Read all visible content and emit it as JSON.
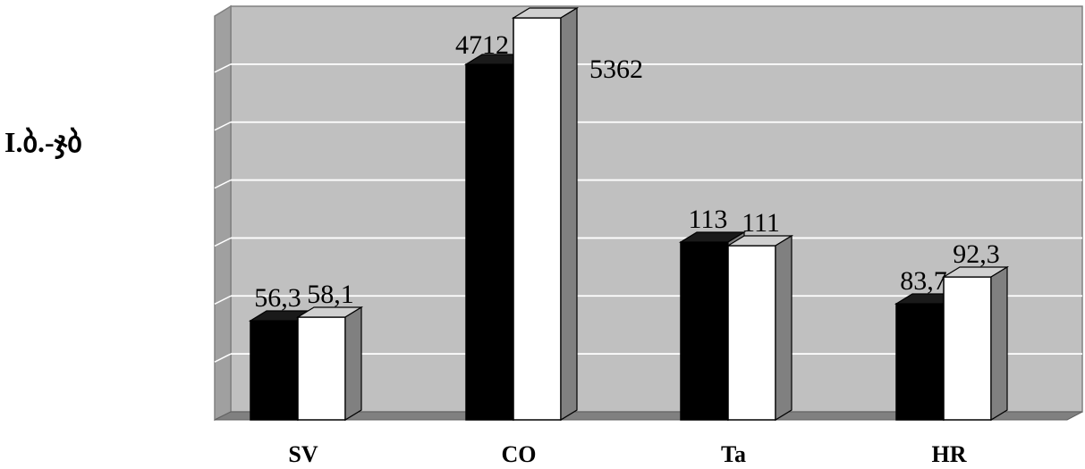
{
  "chart_data": {
    "type": "bar",
    "title": "I.ბ.-ჯბ",
    "categories": [
      "SV",
      "CO",
      "Ta",
      "HR"
    ],
    "series": [
      {
        "values": [
          56.3,
          4712,
          113,
          83.7
        ],
        "labels": [
          "56,3",
          "4712",
          "113",
          "83,7"
        ],
        "color": "#000000"
      },
      {
        "values": [
          58.1,
          5362,
          111,
          92.3
        ],
        "labels": [
          "58,1",
          "5362",
          "111",
          "92,3"
        ],
        "color": "#ffffff"
      }
    ],
    "grid": true,
    "gridlines": 7,
    "wall_color": "#c0c0c0",
    "side_wall_color": "#a0a0a0",
    "floor_color": "#808080",
    "bar_side_color": "#808080",
    "top_black_color": "#1a1a1a",
    "top_white_color": "#d0d0d0",
    "xlabel": "",
    "ylabel": ""
  }
}
